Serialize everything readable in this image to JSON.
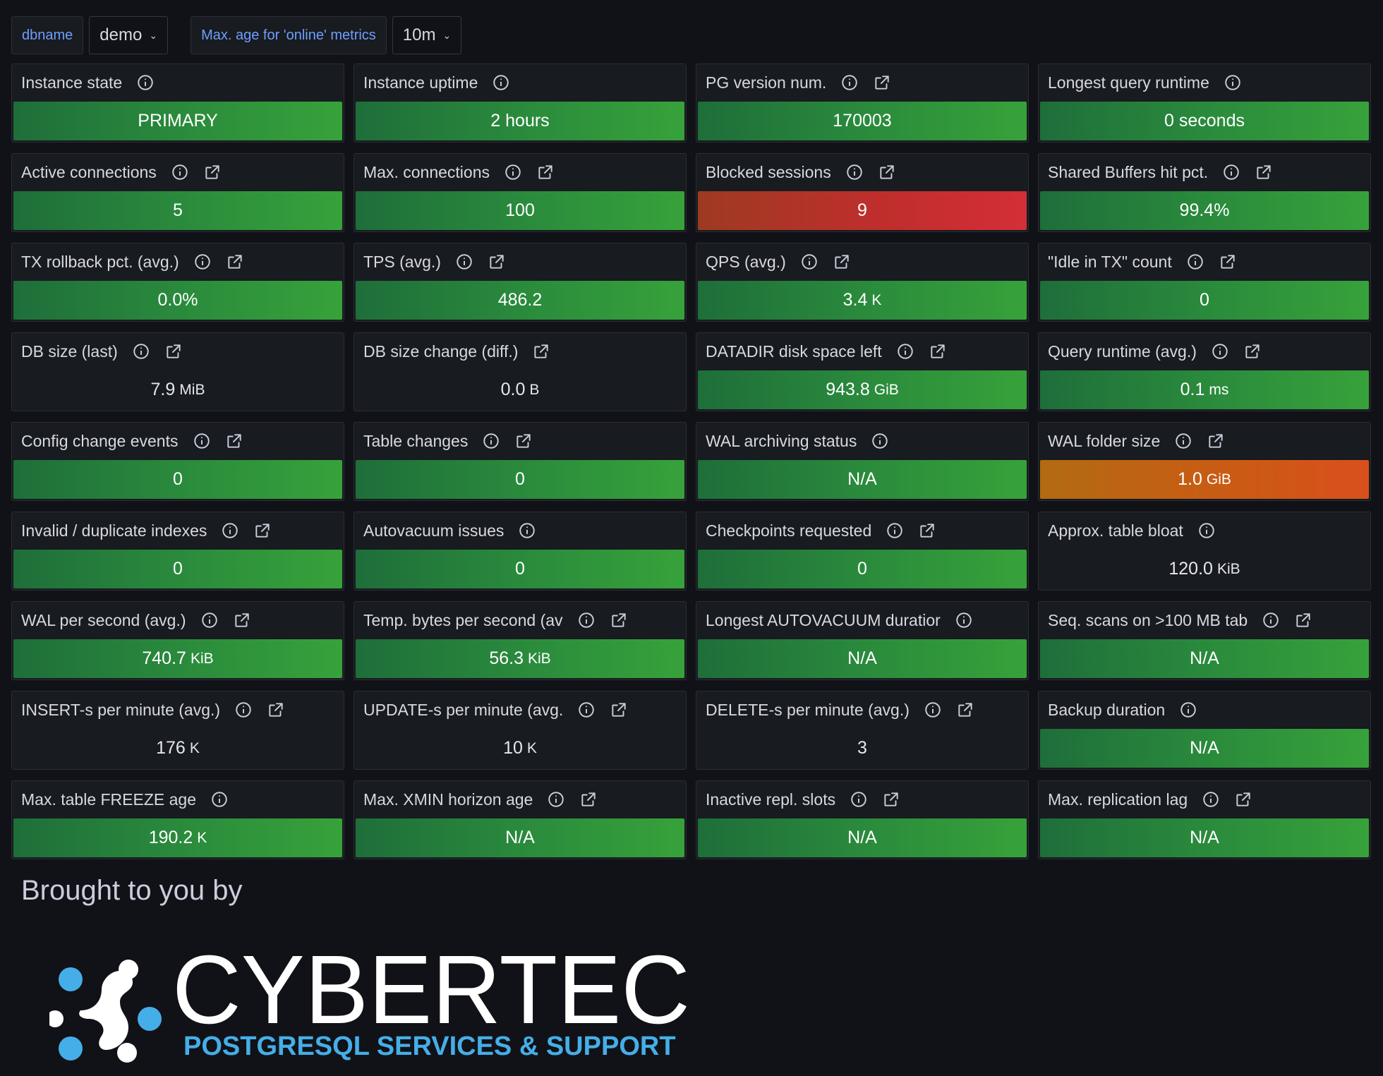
{
  "variables": [
    {
      "label": "dbname",
      "value": "demo"
    },
    {
      "label": "Max. age for 'online' metrics",
      "value": "10m"
    }
  ],
  "colors": {
    "ok": "#2a8a3c",
    "critical": "#c22d2d",
    "warning": "#cb5a14",
    "background": "#111217",
    "panel": "#181b1f",
    "link_label": "#6e9fff",
    "logo_accent": "#45aee8"
  },
  "panels": [
    {
      "title": "Instance state",
      "value": "PRIMARY",
      "unit": "",
      "status": "green",
      "info": true,
      "link": false
    },
    {
      "title": "Instance uptime",
      "value": "2 hours",
      "unit": "",
      "status": "green",
      "info": true,
      "link": false
    },
    {
      "title": "PG version num.",
      "value": "170003",
      "unit": "",
      "status": "green",
      "info": true,
      "link": true
    },
    {
      "title": "Longest query runtime",
      "value": "0 seconds",
      "unit": "",
      "status": "green",
      "info": true,
      "link": false
    },
    {
      "title": "Active connections",
      "value": "5",
      "unit": "",
      "status": "green",
      "info": true,
      "link": true
    },
    {
      "title": "Max. connections",
      "value": "100",
      "unit": "",
      "status": "green",
      "info": true,
      "link": true
    },
    {
      "title": "Blocked sessions",
      "value": "9",
      "unit": "",
      "status": "red",
      "info": true,
      "link": true
    },
    {
      "title": "Shared Buffers hit pct.",
      "value": "99.4%",
      "unit": "",
      "status": "green",
      "info": true,
      "link": true
    },
    {
      "title": "TX rollback pct. (avg.)",
      "value": "0.0%",
      "unit": "",
      "status": "green",
      "info": true,
      "link": true
    },
    {
      "title": "TPS (avg.)",
      "value": "486.2",
      "unit": "",
      "status": "green",
      "info": true,
      "link": true
    },
    {
      "title": "QPS (avg.)",
      "value": "3.4",
      "unit": "K",
      "status": "green",
      "info": true,
      "link": true
    },
    {
      "title": "\"Idle in TX\" count",
      "value": "0",
      "unit": "",
      "status": "green",
      "info": true,
      "link": true
    },
    {
      "title": "DB size (last)",
      "value": "7.9",
      "unit": "MiB",
      "status": "none",
      "info": true,
      "link": true
    },
    {
      "title": "DB size change (diff.)",
      "value": "0.0",
      "unit": "B",
      "status": "none",
      "info": false,
      "link": true
    },
    {
      "title": "DATADIR disk space left",
      "value": "943.8",
      "unit": "GiB",
      "status": "green",
      "info": true,
      "link": true
    },
    {
      "title": "Query runtime (avg.)",
      "value": "0.1",
      "unit": "ms",
      "status": "green",
      "info": true,
      "link": true
    },
    {
      "title": "Config change events",
      "value": "0",
      "unit": "",
      "status": "green",
      "info": true,
      "link": true
    },
    {
      "title": "Table changes",
      "value": "0",
      "unit": "",
      "status": "green",
      "info": true,
      "link": true
    },
    {
      "title": "WAL archiving status",
      "value": "N/A",
      "unit": "",
      "status": "green",
      "info": true,
      "link": false
    },
    {
      "title": "WAL folder size",
      "value": "1.0",
      "unit": "GiB",
      "status": "orange",
      "info": true,
      "link": true
    },
    {
      "title": "Invalid / duplicate indexes",
      "value": "0",
      "unit": "",
      "status": "green",
      "info": true,
      "link": true
    },
    {
      "title": "Autovacuum issues",
      "value": "0",
      "unit": "",
      "status": "green",
      "info": true,
      "link": false
    },
    {
      "title": "Checkpoints requested",
      "value": "0",
      "unit": "",
      "status": "green",
      "info": true,
      "link": true
    },
    {
      "title": "Approx. table bloat",
      "value": "120.0",
      "unit": "KiB",
      "status": "none",
      "info": true,
      "link": false
    },
    {
      "title": "WAL per second (avg.)",
      "value": "740.7",
      "unit": "KiB",
      "status": "green",
      "info": true,
      "link": true
    },
    {
      "title": "Temp. bytes per second (av",
      "value": "56.3",
      "unit": "KiB",
      "status": "green",
      "info": true,
      "link": true
    },
    {
      "title": "Longest AUTOVACUUM duratior",
      "value": "N/A",
      "unit": "",
      "status": "green",
      "info": true,
      "link": false
    },
    {
      "title": "Seq. scans on >100 MB tab",
      "value": "N/A",
      "unit": "",
      "status": "green",
      "info": true,
      "link": true
    },
    {
      "title": "INSERT-s per minute (avg.)",
      "value": "176",
      "unit": "K",
      "status": "none",
      "info": true,
      "link": true
    },
    {
      "title": "UPDATE-s per minute (avg.",
      "value": "10",
      "unit": "K",
      "status": "none",
      "info": true,
      "link": true
    },
    {
      "title": "DELETE-s per minute (avg.)",
      "value": "3",
      "unit": "",
      "status": "none",
      "info": true,
      "link": true
    },
    {
      "title": "Backup duration",
      "value": "N/A",
      "unit": "",
      "status": "green",
      "info": true,
      "link": false
    },
    {
      "title": "Max. table FREEZE age",
      "value": "190.2",
      "unit": "K",
      "status": "green",
      "info": true,
      "link": false
    },
    {
      "title": "Max. XMIN horizon age",
      "value": "N/A",
      "unit": "",
      "status": "green",
      "info": true,
      "link": true
    },
    {
      "title": "Inactive repl. slots",
      "value": "N/A",
      "unit": "",
      "status": "green",
      "info": true,
      "link": true
    },
    {
      "title": "Max. replication lag",
      "value": "N/A",
      "unit": "",
      "status": "green",
      "info": true,
      "link": true
    }
  ],
  "footer": {
    "brought_by": "Brought to you by",
    "logo_word": "CYBERTEC",
    "logo_subtitle": "POSTGRESQL SERVICES & SUPPORT"
  }
}
